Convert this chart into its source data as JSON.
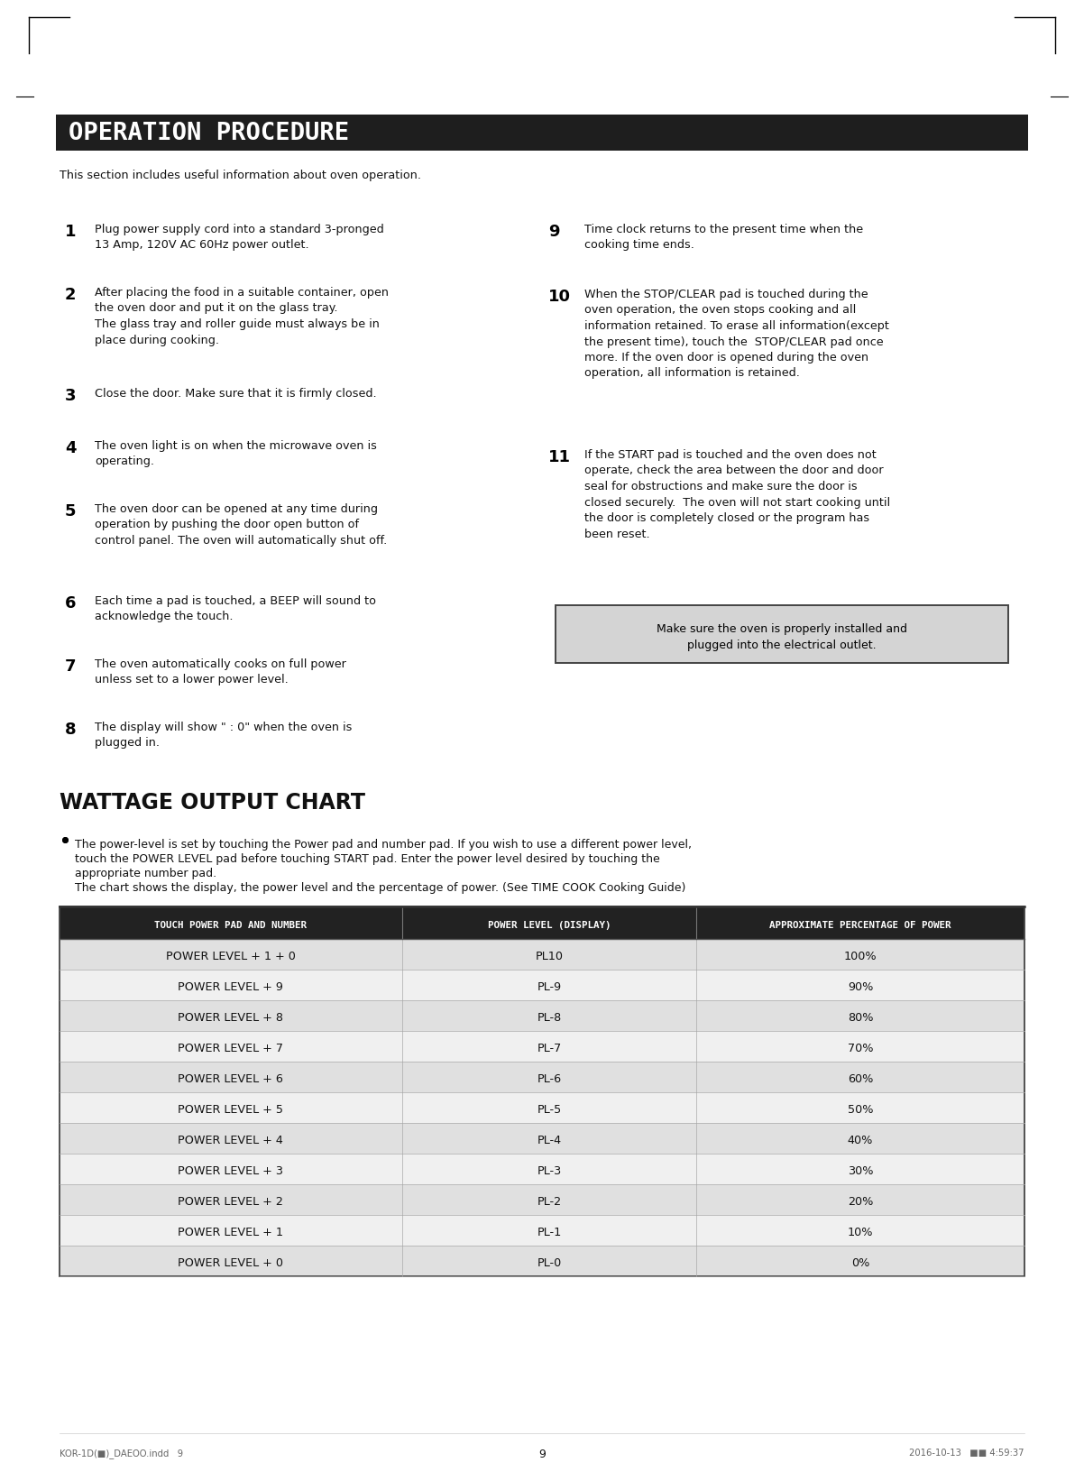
{
  "bg_color": "#ffffff",
  "header_bg": "#1e1e1e",
  "header_text": "OPERATION PROCEDURE",
  "header_text_color": "#ffffff",
  "subtitle": "This section includes useful information about oven operation.",
  "section2_title": "WATTAGE OUTPUT CHART",
  "bullet_line1": "The power-level is set by touching the Power pad and number pad. If you wish to use a different power level,",
  "bullet_line2": "touch the POWER LEVEL pad before touching START pad. Enter the power level desired by touching the",
  "bullet_line3": "appropriate number pad.",
  "bullet_line4": "The chart shows the display, the power level and the percentage of power. (See TIME COOK Cooking Guide)",
  "items_left": [
    {
      "num": "1",
      "text": "Plug power supply cord into a standard 3-pronged\n13 Amp, 120V AC 60Hz power outlet."
    },
    {
      "num": "2",
      "text": "After placing the food in a suitable container, open\nthe oven door and put it on the glass tray.\nThe glass tray and roller guide must always be in\nplace during cooking."
    },
    {
      "num": "3",
      "text": "Close the door. Make sure that it is firmly closed."
    },
    {
      "num": "4",
      "text": "The oven light is on when the microwave oven is\noperating."
    },
    {
      "num": "5",
      "text": "The oven door can be opened at any time during\noperation by pushing the door open button of\ncontrol panel. The oven will automatically shut off."
    },
    {
      "num": "6",
      "text": "Each time a pad is touched, a BEEP will sound to\nacknowledge the touch."
    },
    {
      "num": "7",
      "text": "The oven automatically cooks on full power\nunless set to a lower power level."
    },
    {
      "num": "8",
      "text": "The display will show \" : 0\" when the oven is\nplugged in."
    }
  ],
  "items_right": [
    {
      "num": "9",
      "text": "Time clock returns to the present time when the\ncooking time ends."
    },
    {
      "num": "10",
      "text": "When the STOP/CLEAR pad is touched during the\noven operation, the oven stops cooking and all\ninformation retained. To erase all information(except\nthe present time), touch the  STOP/CLEAR pad once\nmore. If the oven door is opened during the oven\noperation, all information is retained."
    },
    {
      "num": "11",
      "text": "If the START pad is touched and the oven does not\noperate, check the area between the door and door\nseal for obstructions and make sure the door is\nclosed securely.  The oven will not start cooking until\nthe door is completely closed or the program has\nbeen reset."
    }
  ],
  "note_box_text": "Make sure the oven is properly installed and\nplugged into the electrical outlet.",
  "table_header_bg": "#222222",
  "table_header_text_color": "#ffffff",
  "table_header_cols": [
    "TOUCH POWER PAD AND NUMBER",
    "POWER LEVEL (DISPLAY)",
    "APPROXIMATE PERCENTAGE OF POWER"
  ],
  "table_rows": [
    [
      "POWER LEVEL + 1 + 0",
      "PL10",
      "100%"
    ],
    [
      "POWER LEVEL + 9",
      "PL-9",
      "90%"
    ],
    [
      "POWER LEVEL + 8",
      "PL-8",
      "80%"
    ],
    [
      "POWER LEVEL + 7",
      "PL-7",
      "70%"
    ],
    [
      "POWER LEVEL + 6",
      "PL-6",
      "60%"
    ],
    [
      "POWER LEVEL + 5",
      "PL-5",
      "50%"
    ],
    [
      "POWER LEVEL + 4",
      "PL-4",
      "40%"
    ],
    [
      "POWER LEVEL + 3",
      "PL-3",
      "30%"
    ],
    [
      "POWER LEVEL + 2",
      "PL-2",
      "20%"
    ],
    [
      "POWER LEVEL + 1",
      "PL-1",
      "10%"
    ],
    [
      "POWER LEVEL + 0",
      "PL-0",
      "0%"
    ]
  ],
  "table_row_alt_bg": "#e0e0e0",
  "table_row_bg": "#f0f0f0",
  "footer_left": "KOR-1D(■)_DAEOO.indd   9",
  "footer_center": "9",
  "footer_right": "2016-10-13   ■■ 4:59:37"
}
